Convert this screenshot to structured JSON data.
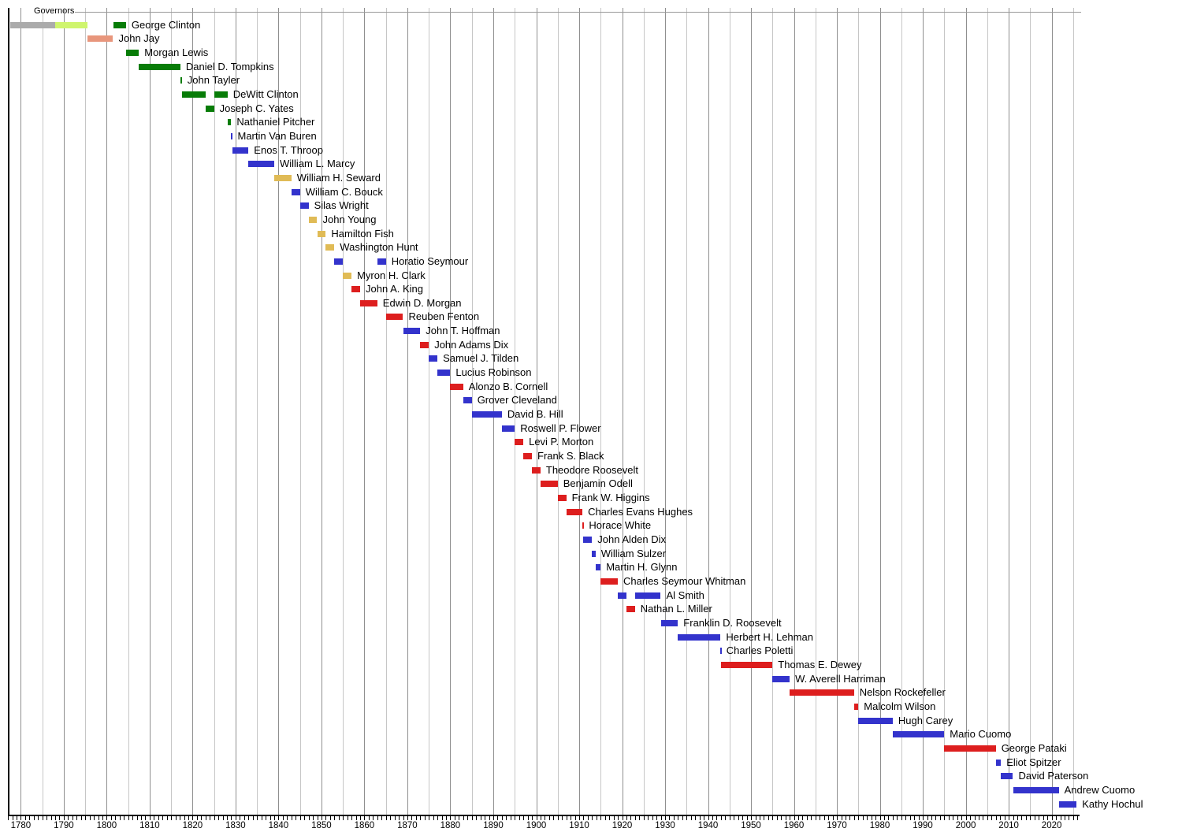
{
  "chart_data": {
    "type": "bar",
    "subtype": "timeline-gantt",
    "title": "Governors",
    "axis": {
      "start": 1777,
      "end": 2026.5,
      "grid_start": 1780,
      "grid_end": 2025,
      "grid_step": 5,
      "tick_start": 1777,
      "tick_end": 2026,
      "tick_step": 1,
      "year_labels": [
        1780,
        1790,
        1800,
        1810,
        1820,
        1830,
        1840,
        1850,
        1860,
        1870,
        1880,
        1890,
        1900,
        1910,
        1920,
        1930,
        1940,
        1950,
        1960,
        1970,
        1980,
        1990,
        2000,
        2010,
        2020
      ]
    },
    "parties": {
      "no_party": "#ABABAB",
      "anti_federalist": "#CFF56E",
      "federalist": "#E8967C",
      "democratic_republican": "#077C07",
      "democratic": "#3333CC",
      "whig": "#E0BB56",
      "republican": "#DD1E1E"
    },
    "governors": [
      {
        "name": "George Clinton",
        "segments": [
          {
            "party": "no_party",
            "from": 1777.58,
            "to": 1788.0
          },
          {
            "party": "anti_federalist",
            "from": 1788.0,
            "to": 1795.5
          },
          {
            "party": "democratic_republican",
            "from": 1801.5,
            "to": 1804.5
          }
        ]
      },
      {
        "name": "John Jay",
        "segments": [
          {
            "party": "federalist",
            "from": 1795.5,
            "to": 1801.5
          }
        ]
      },
      {
        "name": "Morgan Lewis",
        "segments": [
          {
            "party": "democratic_republican",
            "from": 1804.5,
            "to": 1807.5
          }
        ]
      },
      {
        "name": "Daniel D. Tompkins",
        "segments": [
          {
            "party": "democratic_republican",
            "from": 1807.5,
            "to": 1817.15
          }
        ]
      },
      {
        "name": "John Tayler",
        "segments": [
          {
            "party": "democratic_republican",
            "from": 1817.15,
            "to": 1817.5
          }
        ]
      },
      {
        "name": "DeWitt Clinton",
        "segments": [
          {
            "party": "democratic_republican",
            "from": 1817.5,
            "to": 1823.0
          },
          {
            "party": "democratic_republican",
            "from": 1825.0,
            "to": 1828.12
          }
        ]
      },
      {
        "name": "Joseph C. Yates",
        "segments": [
          {
            "party": "democratic_republican",
            "from": 1823.0,
            "to": 1825.0
          }
        ]
      },
      {
        "name": "Nathaniel Pitcher",
        "segments": [
          {
            "party": "democratic_republican",
            "from": 1828.12,
            "to": 1829.0
          }
        ]
      },
      {
        "name": "Martin Van Buren",
        "segments": [
          {
            "party": "democratic",
            "from": 1829.0,
            "to": 1829.2
          }
        ]
      },
      {
        "name": "Enos T. Throop",
        "segments": [
          {
            "party": "democratic",
            "from": 1829.2,
            "to": 1833.0
          }
        ]
      },
      {
        "name": "William L. Marcy",
        "segments": [
          {
            "party": "democratic",
            "from": 1833.0,
            "to": 1839.0
          }
        ]
      },
      {
        "name": "William H. Seward",
        "segments": [
          {
            "party": "whig",
            "from": 1839.0,
            "to": 1843.0
          }
        ]
      },
      {
        "name": "William C. Bouck",
        "segments": [
          {
            "party": "democratic",
            "from": 1843.0,
            "to": 1845.0
          }
        ]
      },
      {
        "name": "Silas Wright",
        "segments": [
          {
            "party": "democratic",
            "from": 1845.0,
            "to": 1847.0
          }
        ]
      },
      {
        "name": "John Young",
        "segments": [
          {
            "party": "whig",
            "from": 1847.0,
            "to": 1849.0
          }
        ]
      },
      {
        "name": "Hamilton Fish",
        "segments": [
          {
            "party": "whig",
            "from": 1849.0,
            "to": 1851.0
          }
        ]
      },
      {
        "name": "Washington Hunt",
        "segments": [
          {
            "party": "whig",
            "from": 1851.0,
            "to": 1853.0
          }
        ]
      },
      {
        "name": "Horatio Seymour",
        "segments": [
          {
            "party": "democratic",
            "from": 1853.0,
            "to": 1855.0
          },
          {
            "party": "democratic",
            "from": 1863.0,
            "to": 1865.0
          }
        ]
      },
      {
        "name": "Myron H. Clark",
        "segments": [
          {
            "party": "whig",
            "from": 1855.0,
            "to": 1857.0
          }
        ]
      },
      {
        "name": "John A. King",
        "segments": [
          {
            "party": "republican",
            "from": 1857.0,
            "to": 1859.0
          }
        ]
      },
      {
        "name": "Edwin D. Morgan",
        "segments": [
          {
            "party": "republican",
            "from": 1859.0,
            "to": 1863.0
          }
        ]
      },
      {
        "name": "Reuben Fenton",
        "segments": [
          {
            "party": "republican",
            "from": 1865.0,
            "to": 1869.0
          }
        ]
      },
      {
        "name": "John T. Hoffman",
        "segments": [
          {
            "party": "democratic",
            "from": 1869.0,
            "to": 1873.0
          }
        ]
      },
      {
        "name": "John Adams Dix",
        "segments": [
          {
            "party": "republican",
            "from": 1873.0,
            "to": 1875.0
          }
        ]
      },
      {
        "name": "Samuel J. Tilden",
        "segments": [
          {
            "party": "democratic",
            "from": 1875.0,
            "to": 1877.0
          }
        ]
      },
      {
        "name": "Lucius Robinson",
        "segments": [
          {
            "party": "democratic",
            "from": 1877.0,
            "to": 1880.0
          }
        ]
      },
      {
        "name": "Alonzo B. Cornell",
        "segments": [
          {
            "party": "republican",
            "from": 1880.0,
            "to": 1883.0
          }
        ]
      },
      {
        "name": "Grover Cleveland",
        "segments": [
          {
            "party": "democratic",
            "from": 1883.0,
            "to": 1885.0
          }
        ]
      },
      {
        "name": "David B. Hill",
        "segments": [
          {
            "party": "democratic",
            "from": 1885.0,
            "to": 1892.0
          }
        ]
      },
      {
        "name": "Roswell P. Flower",
        "segments": [
          {
            "party": "democratic",
            "from": 1892.0,
            "to": 1895.0
          }
        ]
      },
      {
        "name": "Levi P. Morton",
        "segments": [
          {
            "party": "republican",
            "from": 1895.0,
            "to": 1897.0
          }
        ]
      },
      {
        "name": "Frank S. Black",
        "segments": [
          {
            "party": "republican",
            "from": 1897.0,
            "to": 1899.0
          }
        ]
      },
      {
        "name": "Theodore Roosevelt",
        "segments": [
          {
            "party": "republican",
            "from": 1899.0,
            "to": 1901.0
          }
        ]
      },
      {
        "name": "Benjamin Odell",
        "segments": [
          {
            "party": "republican",
            "from": 1901.0,
            "to": 1905.0
          }
        ]
      },
      {
        "name": "Frank W. Higgins",
        "segments": [
          {
            "party": "republican",
            "from": 1905.0,
            "to": 1907.0
          }
        ]
      },
      {
        "name": "Charles Evans Hughes",
        "segments": [
          {
            "party": "republican",
            "from": 1907.0,
            "to": 1910.75
          }
        ]
      },
      {
        "name": "Horace White",
        "segments": [
          {
            "party": "republican",
            "from": 1910.75,
            "to": 1911.0
          }
        ]
      },
      {
        "name": "John Alden Dix",
        "segments": [
          {
            "party": "democratic",
            "from": 1911.0,
            "to": 1913.0
          }
        ]
      },
      {
        "name": "William Sulzer",
        "segments": [
          {
            "party": "democratic",
            "from": 1913.0,
            "to": 1913.8
          }
        ]
      },
      {
        "name": "Martin H. Glynn",
        "segments": [
          {
            "party": "democratic",
            "from": 1913.8,
            "to": 1915.0
          }
        ]
      },
      {
        "name": "Charles Seymour Whitman",
        "segments": [
          {
            "party": "republican",
            "from": 1915.0,
            "to": 1919.0
          }
        ]
      },
      {
        "name": "Al Smith",
        "segments": [
          {
            "party": "democratic",
            "from": 1919.0,
            "to": 1921.0
          },
          {
            "party": "democratic",
            "from": 1923.0,
            "to": 1929.0
          }
        ]
      },
      {
        "name": "Nathan L. Miller",
        "segments": [
          {
            "party": "republican",
            "from": 1921.0,
            "to": 1923.0
          }
        ]
      },
      {
        "name": "Franklin D. Roosevelt",
        "segments": [
          {
            "party": "democratic",
            "from": 1929.0,
            "to": 1933.0
          }
        ]
      },
      {
        "name": "Herbert H. Lehman",
        "segments": [
          {
            "party": "democratic",
            "from": 1933.0,
            "to": 1942.92
          }
        ]
      },
      {
        "name": "Charles Poletti",
        "segments": [
          {
            "party": "democratic",
            "from": 1942.92,
            "to": 1943.0
          }
        ]
      },
      {
        "name": "Thomas E. Dewey",
        "segments": [
          {
            "party": "republican",
            "from": 1943.0,
            "to": 1955.0
          }
        ]
      },
      {
        "name": "W. Averell Harriman",
        "segments": [
          {
            "party": "democratic",
            "from": 1955.0,
            "to": 1959.0
          }
        ]
      },
      {
        "name": "Nelson Rockefeller",
        "segments": [
          {
            "party": "republican",
            "from": 1959.0,
            "to": 1973.97
          }
        ]
      },
      {
        "name": "Malcolm Wilson",
        "segments": [
          {
            "party": "republican",
            "from": 1973.97,
            "to": 1975.0
          }
        ]
      },
      {
        "name": "Hugh Carey",
        "segments": [
          {
            "party": "democratic",
            "from": 1975.0,
            "to": 1983.0
          }
        ]
      },
      {
        "name": "Mario Cuomo",
        "segments": [
          {
            "party": "democratic",
            "from": 1983.0,
            "to": 1995.0
          }
        ]
      },
      {
        "name": "George Pataki",
        "segments": [
          {
            "party": "republican",
            "from": 1995.0,
            "to": 2007.0
          }
        ]
      },
      {
        "name": "Eliot Spitzer",
        "segments": [
          {
            "party": "democratic",
            "from": 2007.0,
            "to": 2008.2
          }
        ]
      },
      {
        "name": "David Paterson",
        "segments": [
          {
            "party": "democratic",
            "from": 2008.2,
            "to": 2011.0
          }
        ]
      },
      {
        "name": "Andrew Cuomo",
        "segments": [
          {
            "party": "democratic",
            "from": 2011.0,
            "to": 2021.65
          }
        ]
      },
      {
        "name": "Kathy Hochul",
        "segments": [
          {
            "party": "democratic",
            "from": 2021.65,
            "to": 2025.8
          }
        ]
      }
    ]
  }
}
